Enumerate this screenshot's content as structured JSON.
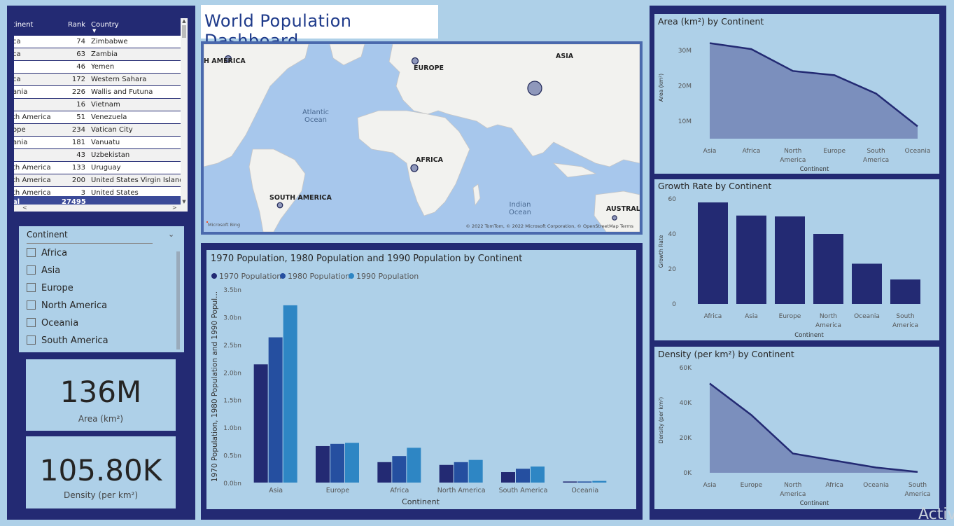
{
  "dashboard_title": "World Population Dashboard",
  "table": {
    "columns": [
      "tinent",
      "Rank",
      "Country"
    ],
    "rows": [
      {
        "continent": "ca",
        "rank": "74",
        "country": "Zimbabwe"
      },
      {
        "continent": "ca",
        "rank": "63",
        "country": "Zambia"
      },
      {
        "continent": "",
        "rank": "46",
        "country": "Yemen"
      },
      {
        "continent": "ca",
        "rank": "172",
        "country": "Western Sahara"
      },
      {
        "continent": "ania",
        "rank": "226",
        "country": "Wallis and Futuna"
      },
      {
        "continent": "",
        "rank": "16",
        "country": "Vietnam"
      },
      {
        "continent": "th America",
        "rank": "51",
        "country": "Venezuela"
      },
      {
        "continent": "ope",
        "rank": "234",
        "country": "Vatican City"
      },
      {
        "continent": "ania",
        "rank": "181",
        "country": "Vanuatu"
      },
      {
        "continent": "",
        "rank": "43",
        "country": "Uzbekistan"
      },
      {
        "continent": "th America",
        "rank": "133",
        "country": "Uruguay"
      },
      {
        "continent": "th America",
        "rank": "200",
        "country": "United States Virgin Islands"
      },
      {
        "continent": "th America",
        "rank": "3",
        "country": "United States"
      }
    ],
    "total_label": "al",
    "total_value": "27495"
  },
  "slicer": {
    "title": "Continent",
    "items": [
      "Africa",
      "Asia",
      "Europe",
      "North America",
      "Oceania",
      "South America"
    ]
  },
  "cards": {
    "area": {
      "value": "136M",
      "label": "Area (km²)"
    },
    "density": {
      "value": "105.80K",
      "label": "Density (per km²)"
    }
  },
  "map": {
    "labels": [
      "H AMERICA",
      "EUROPE",
      "ASIA",
      "AFRICA",
      "SOUTH AMERICA",
      "AUSTRALI"
    ],
    "ocean_labels": [
      "Atlantic\nOcean",
      "Indian\nOcean"
    ],
    "attribution": "© 2022 TomTom, © 2022 Microsoft Corporation, © OpenStreetMap  Terms",
    "logo": "Microsoft Bing"
  },
  "watermark": "Activ",
  "chart_data": [
    {
      "type": "bar",
      "title": "1970 Population, 1980 Population and 1990 Population by Continent",
      "xlabel": "Continent",
      "ylabel": "1970 Population, 1980 Population and 1990 Popul...",
      "categories": [
        "Asia",
        "Europe",
        "Africa",
        "North America",
        "South America",
        "Oceania"
      ],
      "series": [
        {
          "name": "1970 Population",
          "color": "#232a73",
          "values": [
            2.14,
            0.66,
            0.37,
            0.32,
            0.19,
            0.02
          ]
        },
        {
          "name": "1980 Population",
          "color": "#254fa0",
          "values": [
            2.63,
            0.7,
            0.48,
            0.37,
            0.25,
            0.02
          ]
        },
        {
          "name": "1990 Population",
          "color": "#2e86c4",
          "values": [
            3.21,
            0.72,
            0.63,
            0.41,
            0.29,
            0.03
          ]
        }
      ],
      "ylim": [
        0,
        3.5
      ],
      "ticks": [
        "0.0bn",
        "0.5bn",
        "1.0bn",
        "1.5bn",
        "2.0bn",
        "2.5bn",
        "3.0bn",
        "3.5bn"
      ]
    },
    {
      "type": "area",
      "title": "Area (km²) by Continent",
      "xlabel": "Continent",
      "ylabel": "Area (km²)",
      "categories": [
        "Asia",
        "Africa",
        "North America",
        "Europe",
        "South America",
        "Oceania"
      ],
      "values": [
        32.1,
        30.4,
        24.2,
        23.0,
        17.8,
        8.5
      ],
      "ylim": [
        5,
        34
      ],
      "ticks": [
        "10M",
        "20M",
        "30M"
      ]
    },
    {
      "type": "bar",
      "title": "Growth Rate by Continent",
      "xlabel": "Continent",
      "ylabel": "Growth Rate",
      "categories": [
        "Africa",
        "Asia",
        "Europe",
        "North America",
        "Oceania",
        "South America"
      ],
      "values": [
        58,
        50.5,
        50,
        40,
        23,
        14
      ],
      "ylim": [
        0,
        60
      ],
      "ticks": [
        "0",
        "20",
        "40",
        "60"
      ]
    },
    {
      "type": "area",
      "title": "Density (per km²) by Continent",
      "xlabel": "Continent",
      "ylabel": "Density (per km²)",
      "categories": [
        "Asia",
        "Europe",
        "North America",
        "Africa",
        "Oceania",
        "South America"
      ],
      "values": [
        51000,
        33000,
        11000,
        7000,
        3000,
        500
      ],
      "ylim": [
        0,
        60000
      ],
      "ticks": [
        "0K",
        "20K",
        "40K",
        "60K"
      ]
    }
  ]
}
